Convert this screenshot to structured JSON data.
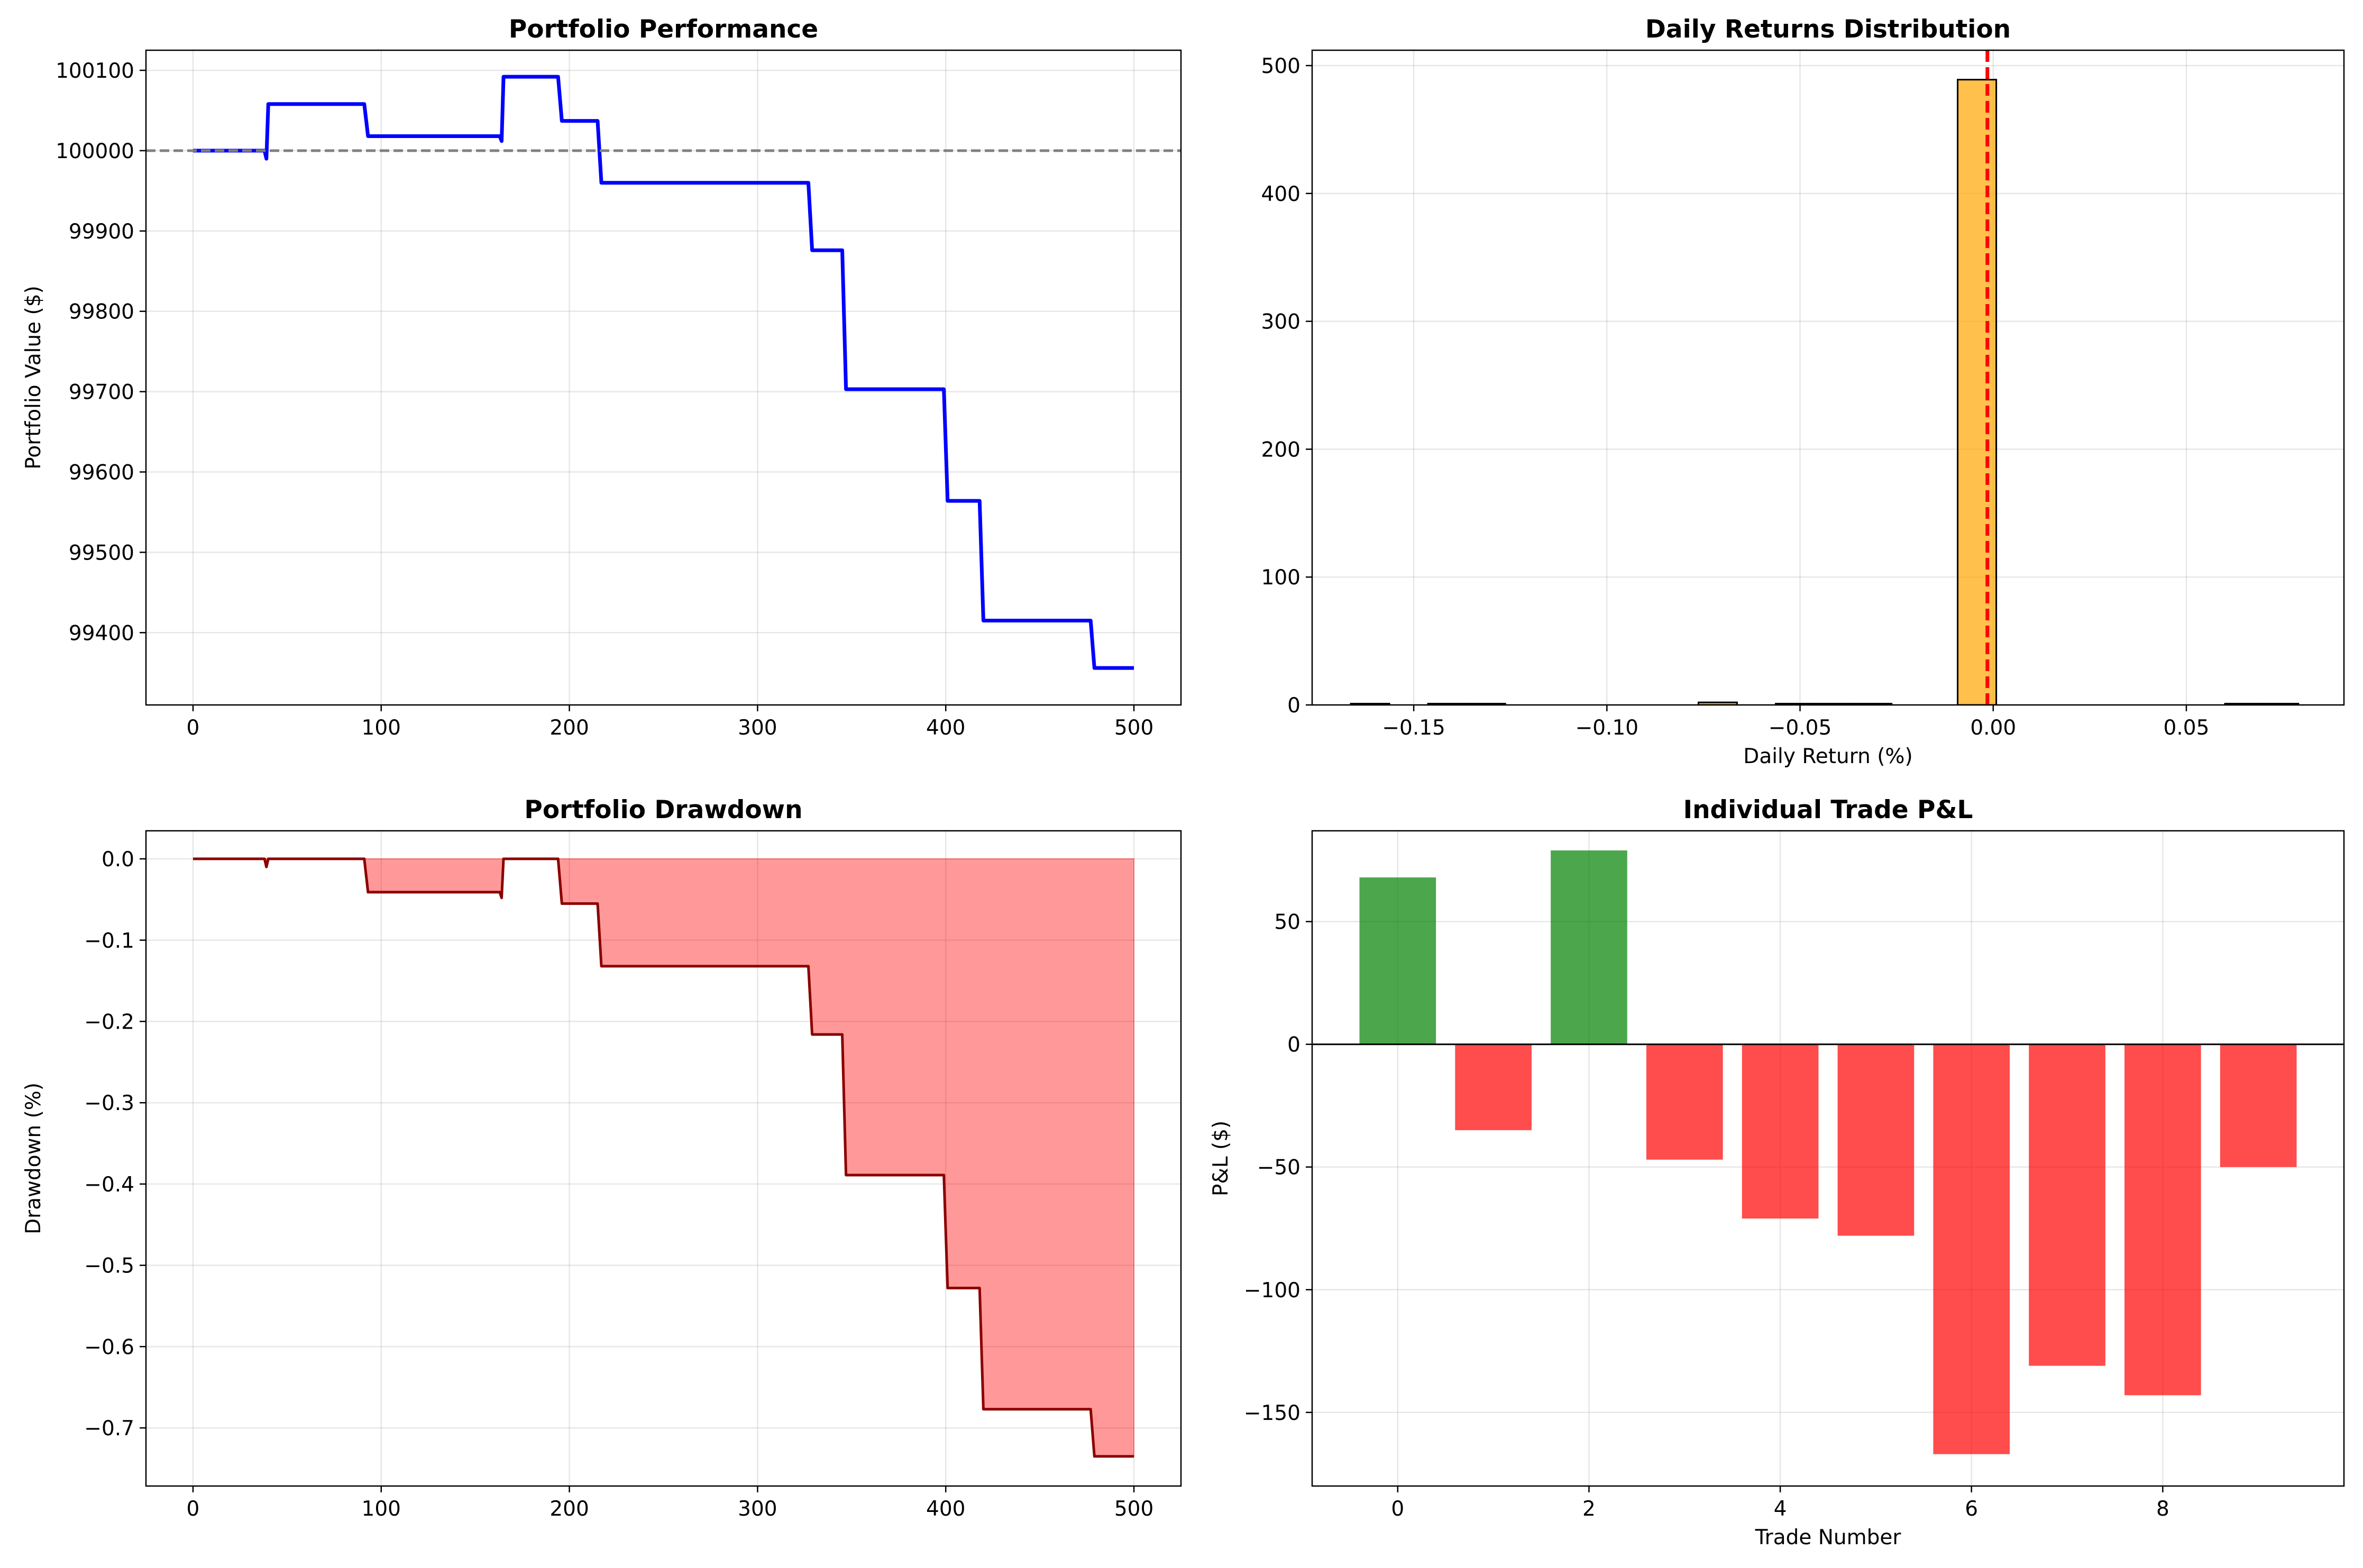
{
  "chart_data": [
    {
      "type": "line",
      "title": "Portfolio Performance",
      "xlabel": "",
      "ylabel": "Portfolio Value ($)",
      "xlim": [
        -25,
        525
      ],
      "ylim": [
        99310,
        100125
      ],
      "xticks": [
        0,
        100,
        200,
        300,
        400,
        500
      ],
      "yticks": [
        99400,
        99500,
        99600,
        99700,
        99800,
        99900,
        100000,
        100100
      ],
      "grid": true,
      "reference_line": {
        "y": 100000,
        "color": "#808080",
        "style": "dashed"
      },
      "series": [
        {
          "color": "#0000ff",
          "x": [
            0,
            38,
            39,
            40,
            91,
            93,
            163,
            164,
            165,
            194,
            196,
            215,
            217,
            327,
            329,
            345,
            347,
            399,
            401,
            418,
            420,
            477,
            479,
            500
          ],
          "y": [
            100000,
            100000,
            99990,
            100058,
            100058,
            100018,
            100018,
            100012,
            100092,
            100092,
            100037,
            100037,
            99960,
            99960,
            99876,
            99876,
            99703,
            99703,
            99564,
            99564,
            99415,
            99415,
            99356,
            99356
          ]
        }
      ]
    },
    {
      "type": "bar",
      "title": "Daily Returns Distribution",
      "xlabel": "Daily Return (%)",
      "ylabel": "",
      "xlim": [
        -0.1763,
        0.0908
      ],
      "ylim": [
        0,
        512
      ],
      "xticks": [
        -0.15,
        -0.1,
        -0.05,
        0.0,
        0.05
      ],
      "xtick_labels": [
        "−0.15",
        "−0.10",
        "−0.05",
        "0.00",
        "0.05"
      ],
      "yticks": [
        0,
        100,
        200,
        300,
        400,
        500
      ],
      "grid": true,
      "bar_color": "#ffa500",
      "reference_line": {
        "x": -0.0015,
        "color": "#ff0000",
        "style": "dashed"
      },
      "bins": [
        {
          "x0": -0.1663,
          "x1": -0.1563,
          "count": 1
        },
        {
          "x0": -0.1463,
          "x1": -0.1363,
          "count": 1
        },
        {
          "x0": -0.1363,
          "x1": -0.1263,
          "count": 1
        },
        {
          "x0": -0.0763,
          "x1": -0.0663,
          "count": 2
        },
        {
          "x0": -0.0563,
          "x1": -0.0463,
          "count": 1
        },
        {
          "x0": -0.0463,
          "x1": -0.0363,
          "count": 1
        },
        {
          "x0": -0.0363,
          "x1": -0.0263,
          "count": 1
        },
        {
          "x0": -0.0092,
          "x1": 0.0008,
          "count": 489
        },
        {
          "x0": 0.06,
          "x1": 0.07,
          "count": 1
        },
        {
          "x0": 0.07,
          "x1": 0.079,
          "count": 1
        }
      ]
    },
    {
      "type": "area",
      "title": "Portfolio Drawdown",
      "xlabel": "",
      "ylabel": "Drawdown (%)",
      "xlim": [
        -25,
        525
      ],
      "ylim": [
        -0.7715,
        0.0345
      ],
      "xticks": [
        0,
        100,
        200,
        300,
        400,
        500
      ],
      "yticks": [
        0.0,
        -0.1,
        -0.2,
        -0.3,
        -0.4,
        -0.5,
        -0.6,
        -0.7
      ],
      "ytick_labels": [
        "0.0",
        "−0.1",
        "−0.2",
        "−0.3",
        "−0.4",
        "−0.5",
        "−0.6",
        "−0.7"
      ],
      "grid": true,
      "line_color": "#8b0000",
      "fill_color": "#ff0000",
      "series": [
        {
          "x": [
            0,
            38,
            39,
            40,
            91,
            93,
            163,
            164,
            165,
            194,
            196,
            215,
            217,
            327,
            329,
            345,
            347,
            399,
            401,
            418,
            420,
            477,
            479,
            500
          ],
          "y": [
            0,
            0,
            -0.01,
            0,
            0,
            -0.041,
            -0.041,
            -0.048,
            0,
            0,
            -0.055,
            -0.055,
            -0.132,
            -0.132,
            -0.216,
            -0.216,
            -0.389,
            -0.389,
            -0.528,
            -0.528,
            -0.677,
            -0.677,
            -0.735,
            -0.735
          ]
        }
      ]
    },
    {
      "type": "bar",
      "title": "Individual Trade P&L",
      "xlabel": "Trade Number",
      "ylabel": "P&L ($)",
      "xlim": [
        -0.895,
        9.895
      ],
      "ylim": [
        -180,
        87
      ],
      "xticks": [
        0,
        2,
        4,
        6,
        8
      ],
      "yticks": [
        50,
        0,
        -50,
        -100,
        -150
      ],
      "ytick_labels": [
        "50",
        "0",
        "−50",
        "−100",
        "−150"
      ],
      "grid": true,
      "positive_color": "#008000",
      "negative_color": "#ff0000",
      "categories": [
        0,
        1,
        2,
        3,
        4,
        5,
        6,
        7,
        8,
        9
      ],
      "values": [
        68,
        -35,
        79,
        -47,
        -71,
        -78,
        -167,
        -131,
        -143,
        -50
      ]
    }
  ]
}
